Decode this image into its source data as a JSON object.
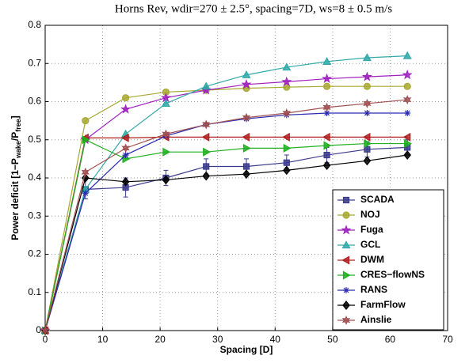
{
  "chart_data": {
    "type": "line",
    "title": "Horns Rev, wdir=270 ± 2.5°, spacing=7D, ws=8 ± 0.5 m/s",
    "xlabel": "Spacing [D]",
    "ylabel_parts": [
      "Power deficit [1−P",
      "wake",
      "/P",
      "free",
      "]"
    ],
    "x": [
      0,
      7,
      14,
      21,
      28,
      35,
      42,
      49,
      56,
      63
    ],
    "xlim": [
      0,
      70
    ],
    "xticks": [
      0,
      10,
      20,
      30,
      40,
      50,
      60,
      70
    ],
    "ylim": [
      0,
      0.8
    ],
    "yticks": [
      0,
      0.1,
      0.2,
      0.3,
      0.4,
      0.5,
      0.6,
      0.7,
      0.8
    ],
    "grid": true,
    "series": [
      {
        "name": "SCADA",
        "color": "#3a3a8c",
        "marker": "square",
        "values": [
          0,
          0.37,
          0.375,
          0.4,
          0.43,
          0.43,
          0.44,
          0.46,
          0.475,
          0.48
        ],
        "errors": [
          0,
          0.025,
          0.025,
          0.02,
          0.02,
          0.02,
          0.02,
          0.02,
          0.02,
          0.02
        ]
      },
      {
        "name": "NOJ",
        "color": "#a8a832",
        "marker": "circle",
        "values": [
          0,
          0.55,
          0.61,
          0.625,
          0.63,
          0.635,
          0.638,
          0.64,
          0.64,
          0.64
        ]
      },
      {
        "name": "Fuga",
        "color": "#a020c0",
        "marker": "star",
        "values": [
          0,
          0.5,
          0.58,
          0.61,
          0.63,
          0.645,
          0.652,
          0.66,
          0.665,
          0.67
        ]
      },
      {
        "name": "GCL",
        "color": "#30a8a8",
        "marker": "triup",
        "values": [
          0,
          0.37,
          0.515,
          0.595,
          0.64,
          0.67,
          0.69,
          0.705,
          0.715,
          0.72
        ]
      },
      {
        "name": "DWM",
        "color": "#b02020",
        "marker": "trileft",
        "values": [
          0,
          0.505,
          0.505,
          0.507,
          0.507,
          0.507,
          0.507,
          0.507,
          0.507,
          0.507
        ]
      },
      {
        "name": "CRES−flowNS",
        "color": "#20b020",
        "marker": "triright",
        "values": [
          0,
          0.5,
          0.45,
          0.468,
          0.468,
          0.478,
          0.478,
          0.485,
          0.49,
          0.49
        ]
      },
      {
        "name": "RANS",
        "color": "#2a2ab0",
        "marker": "asterisk",
        "values": [
          0,
          0.36,
          0.46,
          0.51,
          0.54,
          0.555,
          0.565,
          0.57,
          0.57,
          0.57
        ]
      },
      {
        "name": "FarmFlow",
        "color": "#000000",
        "marker": "diamond",
        "values": [
          0,
          0.4,
          0.39,
          0.395,
          0.405,
          0.41,
          0.42,
          0.433,
          0.445,
          0.46
        ]
      },
      {
        "name": "Ainslie",
        "color": "#a05050",
        "marker": "hex",
        "values": [
          0,
          0.415,
          0.478,
          0.515,
          0.54,
          0.558,
          0.57,
          0.585,
          0.595,
          0.605
        ]
      }
    ]
  }
}
